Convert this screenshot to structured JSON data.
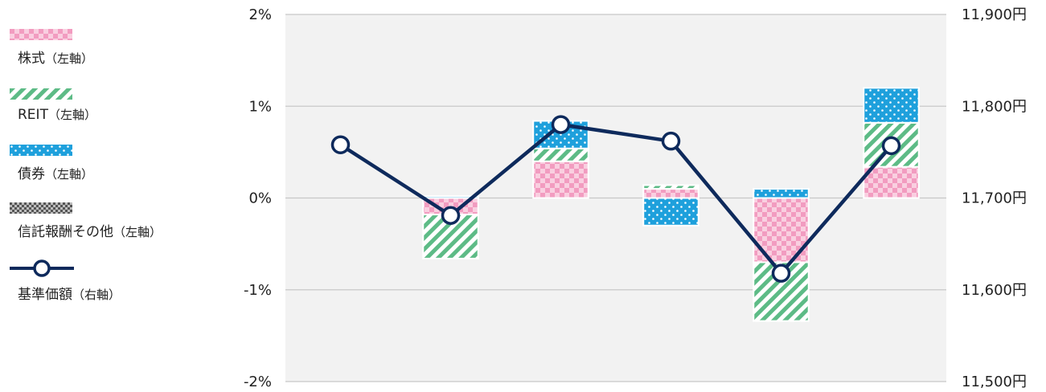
{
  "colors": {
    "stock": "#f4a7c8",
    "reit": "#6cc490",
    "bond": "#1ea0dc",
    "fees": "#8a8a8a",
    "nav_line": "#0e2a5c",
    "plot_bg": "#f2f2f2",
    "grid": "#c8c8c8"
  },
  "legend": {
    "items": [
      {
        "key": "stock",
        "label": "株式",
        "note": "（左軸）",
        "icon": "checker-pattern-swatch"
      },
      {
        "key": "reit",
        "label": "REIT",
        "note": "（左軸）",
        "icon": "diagonal-stripe-swatch"
      },
      {
        "key": "bond",
        "label": "債券",
        "note": "（左軸）",
        "icon": "dot-pattern-swatch"
      },
      {
        "key": "fees",
        "label": "信託報酬その他",
        "note": "（左軸）",
        "icon": "dark-checker-swatch"
      },
      {
        "key": "nav",
        "label": "基準価額",
        "note": "（右軸）",
        "icon": "line-marker-icon"
      }
    ]
  },
  "chart_data": {
    "type": "bar",
    "stacked": true,
    "combo_line": true,
    "categories": [
      "",
      "",
      "",
      "",
      "",
      ""
    ],
    "left_axis": {
      "ylim": [
        -2,
        2
      ],
      "ticks": [
        2,
        1,
        0,
        -1,
        -2
      ],
      "tick_labels": [
        "2%",
        "1%",
        "0%",
        "-1%",
        "-2%"
      ]
    },
    "right_axis": {
      "ylim": [
        11500,
        11900
      ],
      "ticks": [
        11900,
        11800,
        11700,
        11600,
        11500
      ],
      "tick_labels": [
        "11,900円",
        "11,800円",
        "11,700円",
        "11,600円",
        "11,500円"
      ]
    },
    "grid": true,
    "series": [
      {
        "name": "株式",
        "key": "stock",
        "axis": "left",
        "values": [
          0,
          -0.18,
          0.4,
          0.1,
          -0.7,
          0.34
        ]
      },
      {
        "name": "REIT",
        "key": "reit",
        "axis": "left",
        "values": [
          0,
          -0.48,
          0.14,
          0.04,
          -0.64,
          0.48
        ]
      },
      {
        "name": "債券",
        "key": "bond",
        "axis": "left",
        "values": [
          0,
          0.02,
          0.3,
          -0.3,
          0.1,
          0.38
        ]
      },
      {
        "name": "信託報酬その他",
        "key": "fees",
        "axis": "left",
        "values": [
          0,
          0,
          0,
          0,
          0,
          0
        ]
      },
      {
        "name": "基準価額",
        "key": "nav",
        "axis": "right",
        "type": "line",
        "values": [
          11758,
          11681,
          11780,
          11762,
          11618,
          11757
        ]
      }
    ]
  }
}
